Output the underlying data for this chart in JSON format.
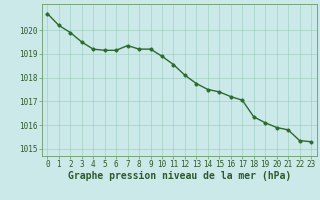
{
  "x": [
    0,
    1,
    2,
    3,
    4,
    5,
    6,
    7,
    8,
    9,
    10,
    11,
    12,
    13,
    14,
    15,
    16,
    17,
    18,
    19,
    20,
    21,
    22,
    23
  ],
  "y": [
    1020.7,
    1020.2,
    1019.9,
    1019.5,
    1019.2,
    1019.15,
    1019.15,
    1019.35,
    1019.2,
    1019.2,
    1018.9,
    1018.55,
    1018.1,
    1017.75,
    1017.5,
    1017.4,
    1017.2,
    1017.05,
    1016.35,
    1016.1,
    1015.9,
    1015.8,
    1015.35,
    1015.3
  ],
  "line_color": "#2d6a2d",
  "marker_color": "#2d6a2d",
  "bg_color": "#cce9e9",
  "grid_color": "#99ccbb",
  "label_color": "#2d5a2d",
  "axis_color": "#6a9a6a",
  "xlabel": "Graphe pression niveau de la mer (hPa)",
  "ylim": [
    1014.7,
    1021.1
  ],
  "xlim": [
    -0.5,
    23.5
  ],
  "yticks": [
    1015,
    1016,
    1017,
    1018,
    1019,
    1020
  ],
  "xticks": [
    0,
    1,
    2,
    3,
    4,
    5,
    6,
    7,
    8,
    9,
    10,
    11,
    12,
    13,
    14,
    15,
    16,
    17,
    18,
    19,
    20,
    21,
    22,
    23
  ],
  "tick_fontsize": 5.5,
  "xlabel_fontsize": 7.0,
  "linewidth": 1.0,
  "markersize": 2.5
}
